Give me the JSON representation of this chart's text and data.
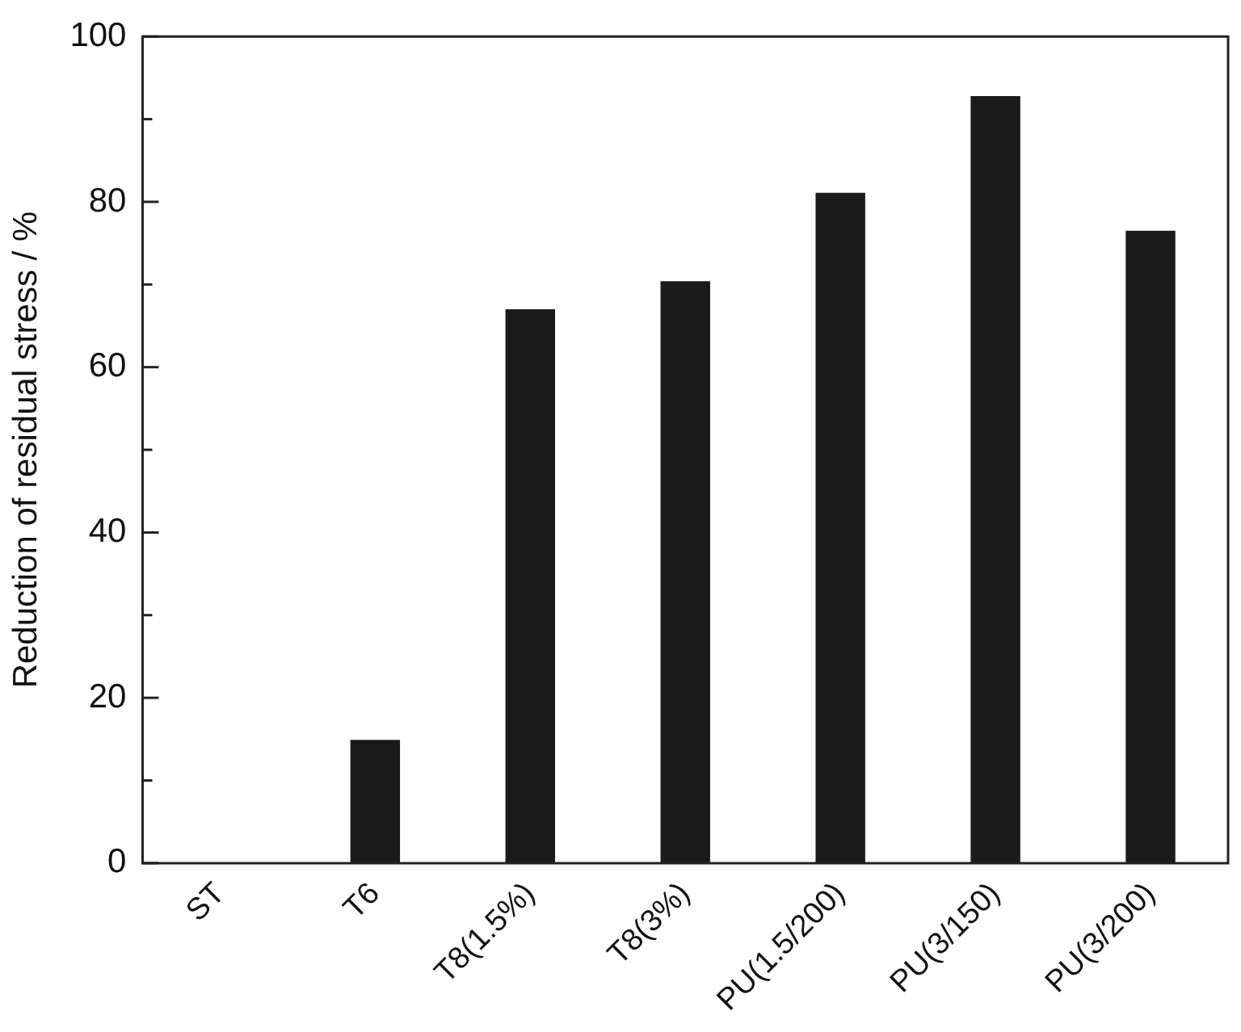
{
  "chart_data": {
    "type": "bar",
    "ylabel": "Reduction of residual stress / %",
    "categories": [
      "ST",
      "T6",
      "T8(1.5%)",
      "T8(3%)",
      "PU(1.5/200)",
      "PU(3/150)",
      "PU(3/200)"
    ],
    "values": [
      0,
      14.9,
      67.0,
      70.4,
      81.1,
      92.8,
      76.5
    ],
    "color": "#1a1a1a",
    "ylim": [
      0,
      100
    ],
    "yticks": [
      0,
      {
        "value": 10,
        "label": null
      },
      20,
      {
        "value": 30,
        "label": null
      },
      40,
      {
        "value": 50,
        "label": null
      },
      60,
      {
        "value": 70,
        "label": null
      },
      80,
      {
        "value": 90,
        "label": null
      },
      100
    ],
    "grid": false,
    "legend": false
  }
}
